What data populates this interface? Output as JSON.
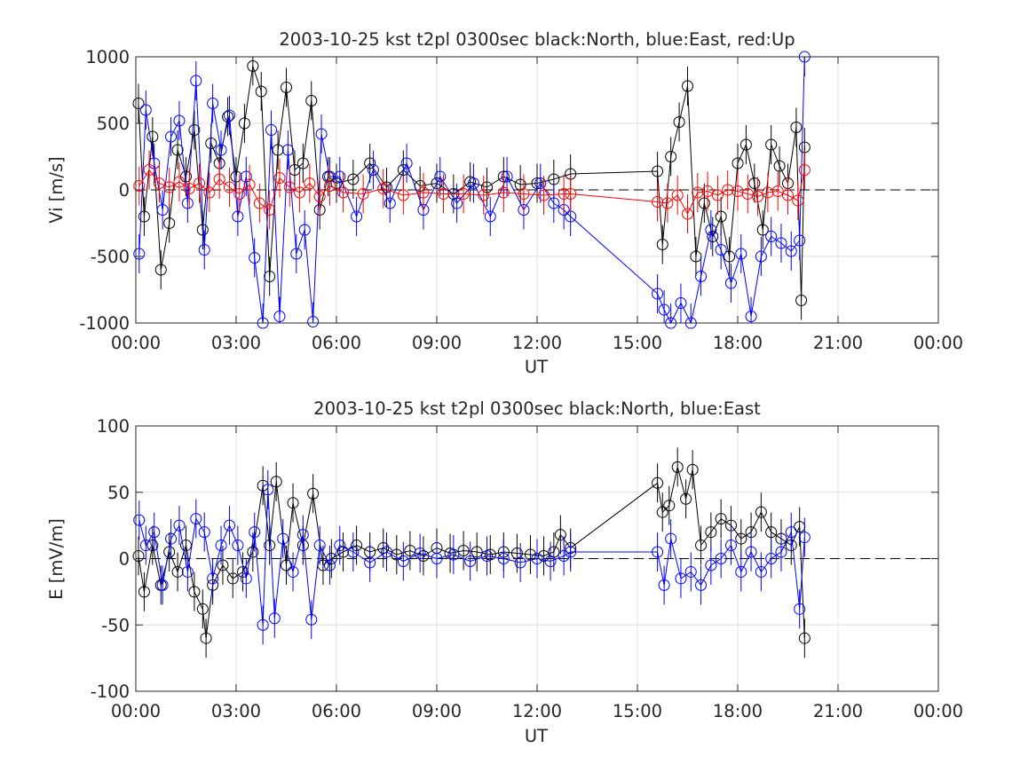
{
  "chart_data": [
    {
      "type": "line",
      "title": "2003-10-25 kst t2pl 0300sec black:North, blue:East, red:Up",
      "xlabel": "UT",
      "ylabel": "Vi [m/s]",
      "xlim": [
        0,
        24
      ],
      "ylim": [
        -1000,
        1000
      ],
      "yticks": [
        -1000,
        -500,
        0,
        500,
        1000
      ],
      "xticks": [
        0,
        3,
        6,
        9,
        12,
        15,
        18,
        21,
        24
      ],
      "xticklabels": [
        "00:00",
        "03:00",
        "06:00",
        "09:00",
        "12:00",
        "15:00",
        "18:00",
        "21:00",
        "00:00"
      ],
      "grid": true,
      "zero_line": 0,
      "series": [
        {
          "color": "#000000",
          "x": [
            0.08,
            0.25,
            0.5,
            0.75,
            1.0,
            1.25,
            1.5,
            1.75,
            2.0,
            2.25,
            2.5,
            2.75,
            3.0,
            3.25,
            3.5,
            3.75,
            4.0,
            4.25,
            4.5,
            4.75,
            5.0,
            5.25,
            5.5,
            5.75,
            6.0,
            6.5,
            7.0,
            7.5,
            8.0,
            8.5,
            9.0,
            9.5,
            10.0,
            10.5,
            11.0,
            11.5,
            12.0,
            12.5,
            13.0,
            15.6,
            15.75,
            16.0,
            16.25,
            16.5,
            16.75,
            17.0,
            17.25,
            17.5,
            17.75,
            18.0,
            18.25,
            18.5,
            18.75,
            19.0,
            19.25,
            19.5,
            19.75,
            19.9,
            20.0
          ],
          "y": [
            650,
            -200,
            400,
            -600,
            -250,
            300,
            100,
            450,
            -300,
            350,
            200,
            550,
            100,
            500,
            930,
            740,
            -650,
            300,
            770,
            150,
            200,
            670,
            -150,
            100,
            50,
            80,
            200,
            20,
            150,
            30,
            50,
            -30,
            60,
            20,
            100,
            40,
            50,
            80,
            120,
            140,
            -410,
            250,
            510,
            780,
            -500,
            -100,
            -350,
            -200,
            -500,
            200,
            340,
            50,
            -300,
            340,
            180,
            50,
            470,
            -830,
            320
          ]
        },
        {
          "color": "#0000ff",
          "x": [
            0.1,
            0.3,
            0.55,
            0.8,
            1.05,
            1.3,
            1.55,
            1.8,
            2.05,
            2.3,
            2.55,
            2.8,
            3.05,
            3.3,
            3.55,
            3.8,
            4.05,
            4.3,
            4.55,
            4.8,
            5.05,
            5.3,
            5.55,
            5.8,
            6.1,
            6.6,
            7.1,
            7.6,
            8.1,
            8.6,
            9.1,
            9.6,
            10.1,
            10.6,
            11.1,
            11.6,
            12.1,
            12.5,
            12.8,
            13.0,
            15.6,
            15.8,
            16.0,
            16.3,
            16.6,
            16.9,
            17.2,
            17.5,
            17.8,
            18.1,
            18.4,
            18.7,
            19.0,
            19.3,
            19.6,
            19.85,
            20.0
          ],
          "y": [
            -480,
            600,
            200,
            -150,
            400,
            520,
            -100,
            820,
            -450,
            650,
            300,
            560,
            -200,
            100,
            -510,
            -1000,
            450,
            -950,
            300,
            -480,
            -300,
            -990,
            420,
            100,
            100,
            -200,
            150,
            -100,
            200,
            -150,
            100,
            -100,
            50,
            -200,
            100,
            -150,
            50,
            -100,
            -150,
            -200,
            -780,
            -900,
            -1000,
            -850,
            -1000,
            -650,
            -300,
            -450,
            -700,
            -480,
            -950,
            -500,
            -350,
            -400,
            -460,
            -380,
            1000
          ]
        },
        {
          "color": "#ff0000",
          "x": [
            0.1,
            0.4,
            0.7,
            1.0,
            1.3,
            1.6,
            1.9,
            2.2,
            2.5,
            2.8,
            3.1,
            3.4,
            3.7,
            4.0,
            4.3,
            4.6,
            4.9,
            5.2,
            5.5,
            5.8,
            6.2,
            6.8,
            7.4,
            8.0,
            8.6,
            9.2,
            9.8,
            10.4,
            11.0,
            11.6,
            12.2,
            12.8,
            13.0,
            15.6,
            15.9,
            16.2,
            16.5,
            16.8,
            17.1,
            17.4,
            17.7,
            18.0,
            18.3,
            18.6,
            18.9,
            19.2,
            19.5,
            19.8,
            20.0
          ],
          "y": [
            30,
            150,
            50,
            20,
            60,
            10,
            50,
            -20,
            80,
            20,
            -30,
            40,
            -100,
            -150,
            90,
            20,
            -20,
            50,
            -50,
            30,
            -20,
            -30,
            10,
            -40,
            -20,
            -30,
            -30,
            -40,
            -20,
            -30,
            -40,
            -30,
            -30,
            -90,
            -100,
            -40,
            -180,
            -20,
            -10,
            -40,
            0,
            -10,
            -30,
            -50,
            -20,
            -10,
            -40,
            -80,
            150
          ]
        }
      ]
    },
    {
      "type": "line",
      "title": "2003-10-25 kst t2pl 0300sec black:North, blue:East",
      "xlabel": "UT",
      "ylabel": "E [mV/m]",
      "xlim": [
        0,
        24
      ],
      "ylim": [
        -100,
        100
      ],
      "yticks": [
        -100,
        -50,
        0,
        50,
        100
      ],
      "xticks": [
        0,
        3,
        6,
        9,
        12,
        15,
        18,
        21,
        24
      ],
      "xticklabels": [
        "00:00",
        "03:00",
        "06:00",
        "09:00",
        "12:00",
        "15:00",
        "18:00",
        "21:00",
        "00:00"
      ],
      "grid": true,
      "zero_line": 0,
      "series": [
        {
          "color": "#000000",
          "x": [
            0.08,
            0.25,
            0.5,
            0.75,
            1.0,
            1.25,
            1.5,
            1.75,
            2.0,
            2.1,
            2.3,
            2.6,
            2.9,
            3.2,
            3.5,
            3.8,
            4.0,
            4.2,
            4.5,
            4.7,
            5.0,
            5.3,
            5.6,
            5.85,
            6.2,
            6.6,
            7.0,
            7.4,
            7.8,
            8.2,
            8.6,
            9.0,
            9.4,
            9.8,
            10.2,
            10.6,
            11.0,
            11.4,
            11.8,
            12.2,
            12.5,
            12.7,
            13.0,
            15.6,
            15.75,
            15.95,
            16.2,
            16.45,
            16.65,
            16.9,
            17.2,
            17.5,
            17.8,
            18.1,
            18.4,
            18.7,
            19.0,
            19.3,
            19.6,
            19.85,
            20.0
          ],
          "y": [
            2,
            -25,
            10,
            -20,
            5,
            -10,
            10,
            -25,
            -38,
            -60,
            -20,
            -5,
            -15,
            -10,
            5,
            55,
            10,
            58,
            -5,
            42,
            10,
            49,
            -5,
            0,
            5,
            10,
            5,
            8,
            3,
            6,
            2,
            8,
            4,
            6,
            5,
            3,
            5,
            4,
            3,
            2,
            5,
            18,
            8,
            57,
            35,
            40,
            69,
            45,
            67,
            10,
            20,
            30,
            25,
            15,
            20,
            35,
            20,
            15,
            10,
            24,
            -60
          ]
        },
        {
          "color": "#0000ff",
          "x": [
            0.1,
            0.3,
            0.55,
            0.8,
            1.05,
            1.3,
            1.55,
            1.8,
            2.05,
            2.3,
            2.55,
            2.8,
            3.05,
            3.3,
            3.55,
            3.8,
            3.95,
            4.15,
            4.4,
            4.7,
            5.0,
            5.25,
            5.5,
            5.8,
            6.1,
            6.5,
            7.0,
            7.5,
            8.0,
            8.5,
            9.0,
            9.5,
            10.0,
            10.5,
            11.0,
            11.5,
            12.0,
            12.4,
            12.8,
            13.0,
            15.6,
            15.8,
            16.0,
            16.3,
            16.6,
            16.9,
            17.2,
            17.5,
            17.8,
            18.1,
            18.4,
            18.7,
            19.0,
            19.3,
            19.6,
            19.85,
            20.0
          ],
          "y": [
            29,
            10,
            20,
            -20,
            15,
            25,
            -10,
            30,
            20,
            -15,
            10,
            25,
            10,
            -15,
            20,
            -50,
            52,
            -45,
            15,
            -10,
            18,
            -46,
            10,
            -5,
            10,
            5,
            -3,
            5,
            -2,
            4,
            0,
            3,
            -2,
            2,
            0,
            -3,
            0,
            -2,
            2,
            5,
            5,
            -20,
            15,
            -15,
            -10,
            -20,
            -5,
            0,
            10,
            -10,
            5,
            -10,
            0,
            5,
            20,
            -38,
            16
          ]
        }
      ]
    }
  ]
}
